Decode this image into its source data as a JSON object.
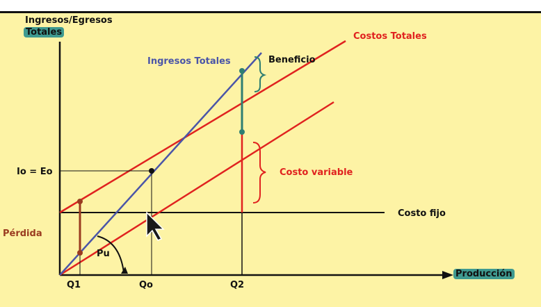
{
  "colors": {
    "background": "#fdf3a5",
    "axis": "#111111",
    "ingresos_line": "#4a55a8",
    "costos_line": "#e0221f",
    "perdida": "#9a3b20",
    "beneficio": "#2e7e72",
    "highlight": "#3f9a90"
  },
  "labels": {
    "y_axis_line1": "Ingresos/Egresos",
    "y_axis_line2": "Totales",
    "x_axis": "Producción",
    "costos_totales": "Costos Totales",
    "ingresos_totales": "Ingresos Totales",
    "beneficio": "Beneficio",
    "costo_variable": "Costo variable",
    "costo_fijo": "Costo fijo",
    "io_eo": "Io = Eo",
    "perdida": "Pérdida",
    "pu": "Pu",
    "q1": "Q1",
    "qo": "Qo",
    "q2": "Q2"
  },
  "icons": {
    "cursor": "mouse-pointer-icon"
  }
}
